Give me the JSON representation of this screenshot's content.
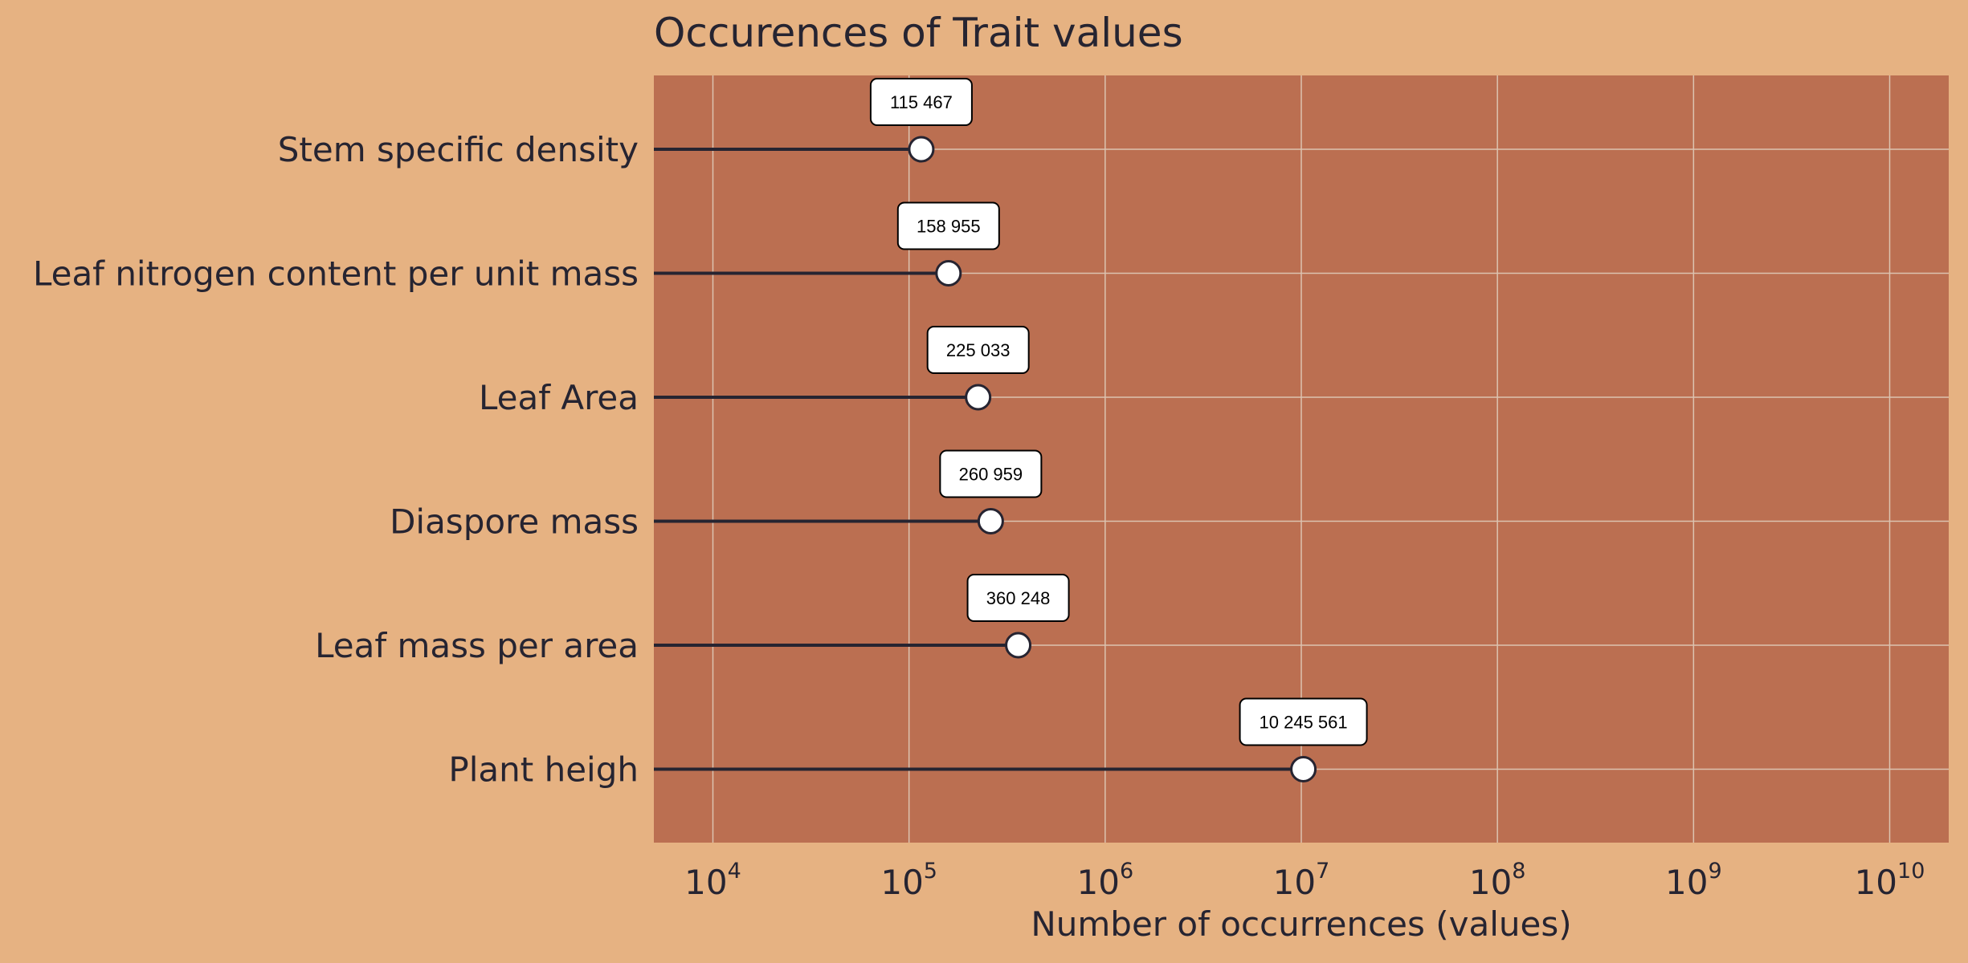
{
  "colors": {
    "background": "#e6b282",
    "plot_background": "#bb6f51",
    "text": "#262431",
    "grid": "#dcc3b0",
    "stem": "#262431",
    "marker_fill": "#ffffff",
    "label_box": "#ffffff"
  },
  "chart_data": {
    "type": "lollipop",
    "orientation": "horizontal",
    "title": "Occurences of Trait values",
    "xlabel": "Number of occurrences (values)",
    "ylabel": "",
    "x_scale": "log",
    "xlim": [
      5000,
      20000000000
    ],
    "x_ticks": [
      {
        "value": 10000,
        "base": "10",
        "exponent": "4"
      },
      {
        "value": 100000,
        "base": "10",
        "exponent": "5"
      },
      {
        "value": 1000000,
        "base": "10",
        "exponent": "6"
      },
      {
        "value": 10000000,
        "base": "10",
        "exponent": "7"
      },
      {
        "value": 100000000,
        "base": "10",
        "exponent": "8"
      },
      {
        "value": 1000000000,
        "base": "10",
        "exponent": "9"
      },
      {
        "value": 10000000000,
        "base": "10",
        "exponent": "10"
      }
    ],
    "grid": true,
    "legend": "none",
    "categories": [
      "Stem specific density",
      "Leaf nitrogen content per unit mass",
      "Leaf Area",
      "Diaspore mass",
      "Leaf mass per area",
      "Plant heigh"
    ],
    "values": [
      115467,
      158955,
      225033,
      260959,
      360248,
      10245561
    ],
    "data_labels": [
      "115 467",
      "158 955",
      "225 033",
      "260 959",
      "360 248",
      "10 245 561"
    ]
  }
}
